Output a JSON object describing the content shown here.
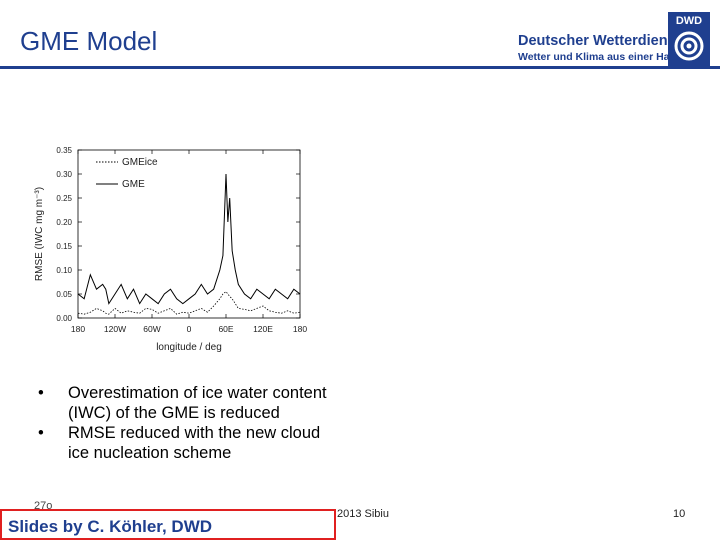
{
  "slide": {
    "title": "GME Model",
    "logo": {
      "line1": "Deutscher Wetterdienst",
      "line2": "Wetter und Klima aus einer Hand",
      "badge": "DWD"
    },
    "bullets": [
      "Overestimation of ice water content (IWC) of the GME is reduced",
      "RMSE reduced with the new cloud ice nucleation scheme"
    ],
    "footer": {
      "left_fragment": "27o",
      "date_fragment": "2013 Sibiu",
      "page": "10"
    },
    "credit": "Slides by C. Köhler, DWD",
    "colors": {
      "title": "#1f3f8f",
      "credit_border": "#e02020"
    }
  },
  "chart_data": {
    "type": "line",
    "xlabel": "longitude / deg",
    "ylabel": "RMSE (IWC mg m⁻³)",
    "xlim": [
      -180,
      180
    ],
    "ylim": [
      0,
      0.35
    ],
    "xticks": [
      -180,
      -120,
      -60,
      0,
      60,
      120,
      180
    ],
    "xtick_labels": [
      "180",
      "120W",
      "60W",
      "0",
      "60E",
      "120E",
      "180"
    ],
    "yticks": [
      0,
      0.05,
      0.1,
      0.15,
      0.2,
      0.25,
      0.3,
      0.35
    ],
    "ytick_labels": [
      "0.00",
      "0.05",
      "0.10",
      "0.15",
      "0.20",
      "0.25",
      "0.30",
      "0.35"
    ],
    "legend_position": "top-left",
    "grid": false,
    "x": [
      -180,
      -170,
      -160,
      -150,
      -140,
      -135,
      -130,
      -120,
      -110,
      -100,
      -90,
      -80,
      -70,
      -60,
      -50,
      -40,
      -30,
      -20,
      -10,
      0,
      10,
      20,
      30,
      40,
      50,
      55,
      60,
      63,
      66,
      70,
      75,
      80,
      90,
      100,
      110,
      120,
      130,
      140,
      150,
      160,
      170,
      180
    ],
    "series": [
      {
        "name": "GMEice",
        "style": "dotted",
        "values": [
          0.01,
          0.008,
          0.012,
          0.02,
          0.015,
          0.01,
          0.008,
          0.02,
          0.01,
          0.015,
          0.012,
          0.01,
          0.02,
          0.018,
          0.01,
          0.015,
          0.02,
          0.008,
          0.012,
          0.01,
          0.015,
          0.02,
          0.012,
          0.025,
          0.04,
          0.05,
          0.055,
          0.05,
          0.045,
          0.04,
          0.03,
          0.02,
          0.018,
          0.015,
          0.02,
          0.025,
          0.015,
          0.012,
          0.01,
          0.015,
          0.01,
          0.012
        ]
      },
      {
        "name": "GME",
        "style": "solid",
        "values": [
          0.05,
          0.04,
          0.09,
          0.06,
          0.07,
          0.06,
          0.03,
          0.05,
          0.07,
          0.04,
          0.06,
          0.03,
          0.05,
          0.04,
          0.03,
          0.05,
          0.06,
          0.04,
          0.03,
          0.04,
          0.05,
          0.07,
          0.05,
          0.06,
          0.1,
          0.13,
          0.3,
          0.2,
          0.25,
          0.14,
          0.1,
          0.07,
          0.05,
          0.04,
          0.06,
          0.05,
          0.04,
          0.06,
          0.05,
          0.04,
          0.06,
          0.05
        ]
      }
    ]
  }
}
